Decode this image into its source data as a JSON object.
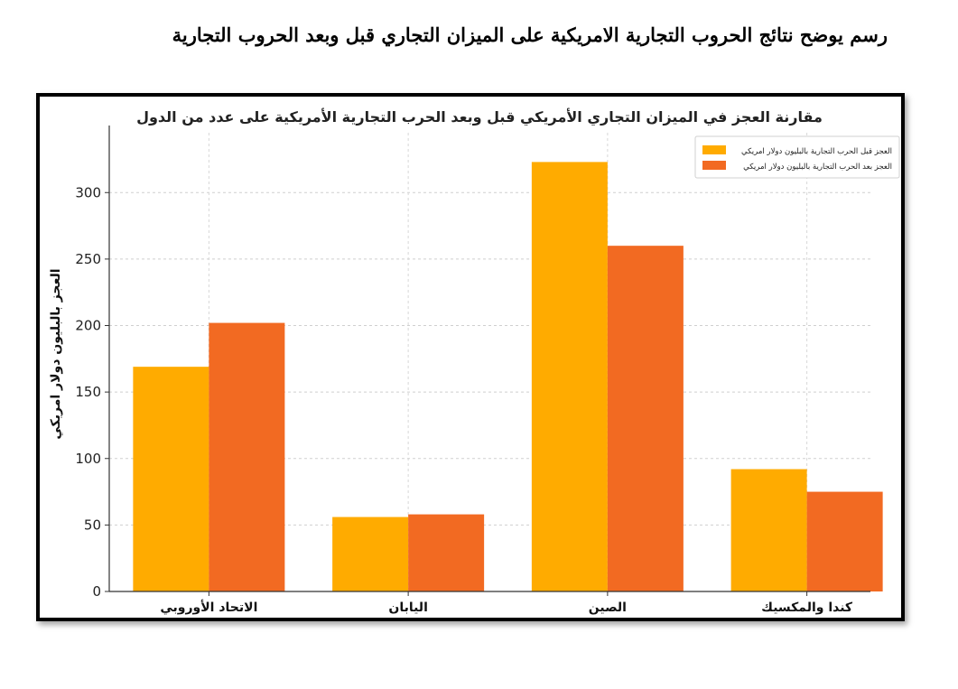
{
  "page": {
    "caption": "رسم يوضح نتائج الحروب التجارية الامريكية على الميزان التجاري قبل وبعد الحروب التجارية"
  },
  "chart_data": {
    "type": "bar",
    "title": "مقارنة العجز في الميزان التجاري الأمريكي قبل وبعد الحرب التجارية الأمريكية على عدد من الدول",
    "xlabel": "",
    "ylabel": "العجز بالبليون دولار امريكي",
    "categories": [
      "الاتحاد الأوروبي",
      "اليابان",
      "الصين",
      "كندا والمكسيك"
    ],
    "series": [
      {
        "name": "العجز قبل الحرب التجارية بالبليون دولار امريكي",
        "values": [
          169,
          56,
          323,
          92
        ],
        "color": "#FFAB00"
      },
      {
        "name": "العجز بعد الحرب التجارية بالبليون دولار امريكي",
        "values": [
          202,
          58,
          260,
          75
        ],
        "color": "#F26A22"
      }
    ],
    "ylim": [
      0,
      345
    ],
    "yticks": [
      0,
      50,
      100,
      150,
      200,
      250,
      300
    ],
    "grid": true,
    "legend_position": "top-right"
  }
}
